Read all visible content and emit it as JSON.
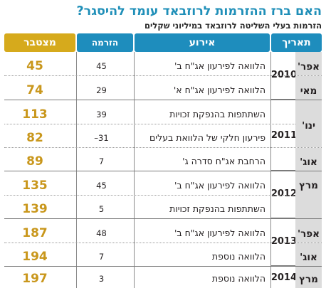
{
  "title": "האם ברז ההזרמות לרוזבאד עומד להיסגר?",
  "subtitle": "הזרמות בעלי השליטה לרוזבאד במיליוני שקלים",
  "headers": {
    "date": "תאריך",
    "event": "אירוע",
    "increase": "הזרמה",
    "cumulative": "מצטבר"
  },
  "years": [
    "2010",
    "2011",
    "2012",
    "2013",
    "2014"
  ],
  "rows": [
    {
      "year": "2010",
      "month": "אפר'",
      "event": "הלוואה לפירעון אג\"ח ב'",
      "increase": "45",
      "cumulative": "45"
    },
    {
      "year": "2010",
      "month": "מאי",
      "event": "הלוואה לפירעון אג\"ח א'",
      "increase": "29",
      "cumulative": "74"
    },
    {
      "year": "2011",
      "month": "",
      "event": "השתתפות בהנפקת זכויות",
      "increase": "39",
      "cumulative": "113"
    },
    {
      "year": "2011",
      "month": "ינו'",
      "event": "פירעון חלקי של הלוואת בעלים",
      "increase": "31–",
      "cumulative": "82"
    },
    {
      "year": "2011",
      "month": "אוג'",
      "event": "הרחבת אג\"ח סדרה ג'",
      "increase": "7",
      "cumulative": "89"
    },
    {
      "year": "2012",
      "month": "מרץ",
      "event": "הלוואה לפירעון אג\"ח ב'",
      "increase": "45",
      "cumulative": "135"
    },
    {
      "year": "2012",
      "month": "",
      "event": "השתתפות בהנפקת זכויות",
      "increase": "5",
      "cumulative": "139"
    },
    {
      "year": "2013",
      "month": "אפר'",
      "event": "הלוואה לפירעון אג\"ח ב'",
      "increase": "48",
      "cumulative": "187"
    },
    {
      "year": "2013",
      "month": "אוג'",
      "event": "הלוואה נוספת",
      "increase": "7",
      "cumulative": "194"
    },
    {
      "year": "2014",
      "month": "מרץ",
      "event": "הלוואה נוספת",
      "increase": "3",
      "cumulative": "197"
    }
  ]
}
